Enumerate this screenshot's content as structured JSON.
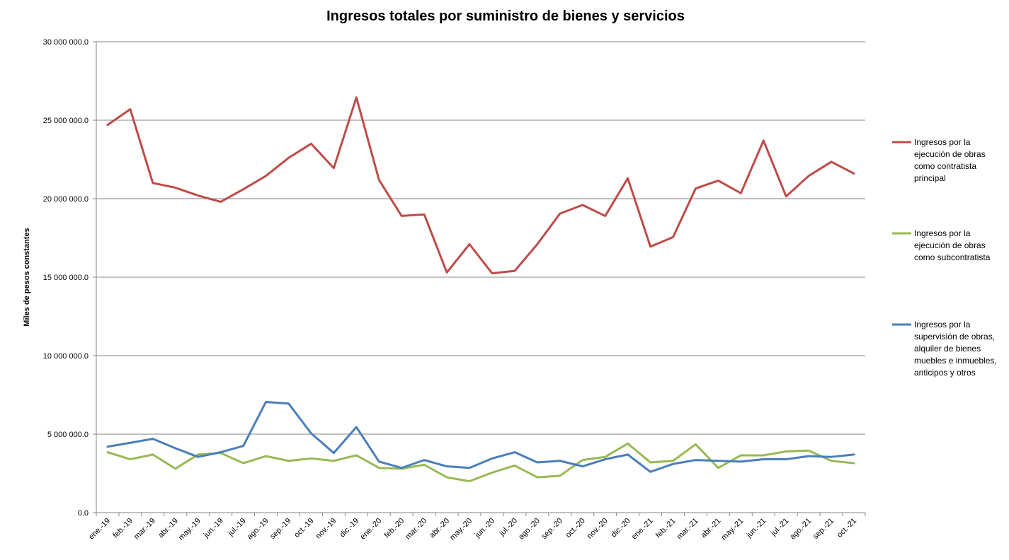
{
  "chart_data": {
    "type": "line",
    "title": "Ingresos totales por suministro de bienes y servicios",
    "xlabel": "",
    "ylabel": "Miles de pesos constantes",
    "ylim": [
      0,
      30000000
    ],
    "yticks": [
      0,
      5000000,
      10000000,
      15000000,
      20000000,
      25000000,
      30000000
    ],
    "ytick_labels": [
      "0.0",
      "5 000 000.0",
      "10 000 000.0",
      "15 000 000.0",
      "20 000 000.0",
      "25 000 000.0",
      "30 000 000.0"
    ],
    "grid": true,
    "legend_position": "right",
    "categories": [
      "ene.-19",
      "feb.-19",
      "mar.-19",
      "abr.-19",
      "may.-19",
      "jun.-19",
      "jul.-19",
      "ago.-19",
      "sep.-19",
      "oct.-19",
      "nov.-19",
      "dic.-19",
      "ene.-20",
      "feb.-20",
      "mar.-20",
      "abr.-20",
      "may.-20",
      "jun.-20",
      "jul.-20",
      "ago.-20",
      "sep.-20",
      "oct.-20",
      "nov.-20",
      "dic.-20",
      "ene.-21",
      "feb.-21",
      "mar.-21",
      "abr.-21",
      "may.-21",
      "jun.-21",
      "jul.-21",
      "ago.-21",
      "sep.-21",
      "oct.-21"
    ],
    "series": [
      {
        "name": "Ingresos por la ejecución de obras como contratista principal",
        "legend_lines": [
          "Ingresos por la",
          "ejecución de obras",
          "como contratista",
          "principal"
        ],
        "color": "#BE4B48",
        "values": [
          24700000,
          25700000,
          21000000,
          20700000,
          20200000,
          19800000,
          20600000,
          21450000,
          22600000,
          23500000,
          21950000,
          26450000,
          21200000,
          18900000,
          19000000,
          15300000,
          17100000,
          15250000,
          15400000,
          17100000,
          19050000,
          19600000,
          18900000,
          21300000,
          16950000,
          17550000,
          20650000,
          21150000,
          20350000,
          23700000,
          20150000,
          21450000,
          22350000,
          21600000
        ]
      },
      {
        "name": "Ingresos por la ejecución de obras como subcontratista",
        "legend_lines": [
          "Ingresos por la",
          "ejecución de obras",
          "como subcontratista"
        ],
        "color": "#98B954",
        "values": [
          3850000,
          3400000,
          3700000,
          2800000,
          3700000,
          3800000,
          3150000,
          3600000,
          3300000,
          3450000,
          3300000,
          3650000,
          2850000,
          2800000,
          3050000,
          2250000,
          2000000,
          2550000,
          3000000,
          2250000,
          2350000,
          3350000,
          3550000,
          4400000,
          3200000,
          3300000,
          4350000,
          2850000,
          3650000,
          3650000,
          3900000,
          3950000,
          3300000,
          3150000
        ]
      },
      {
        "name": "Ingresos por la supervisión de obras, alquiler de bienes muebles e inmuebles, anticipos y otros",
        "legend_lines": [
          "Ingresos por la",
          "supervisión de obras,",
          "alquiler de bienes",
          "muebles e inmuebles,",
          "anticipos y otros"
        ],
        "color": "#4A7EBB",
        "values": [
          4200000,
          4450000,
          4700000,
          4100000,
          3550000,
          3850000,
          4250000,
          7050000,
          6950000,
          5050000,
          3800000,
          5450000,
          3250000,
          2850000,
          3350000,
          2950000,
          2850000,
          3450000,
          3850000,
          3200000,
          3300000,
          2950000,
          3400000,
          3700000,
          2600000,
          3100000,
          3350000,
          3300000,
          3250000,
          3400000,
          3400000,
          3600000,
          3550000,
          3700000
        ]
      }
    ]
  }
}
